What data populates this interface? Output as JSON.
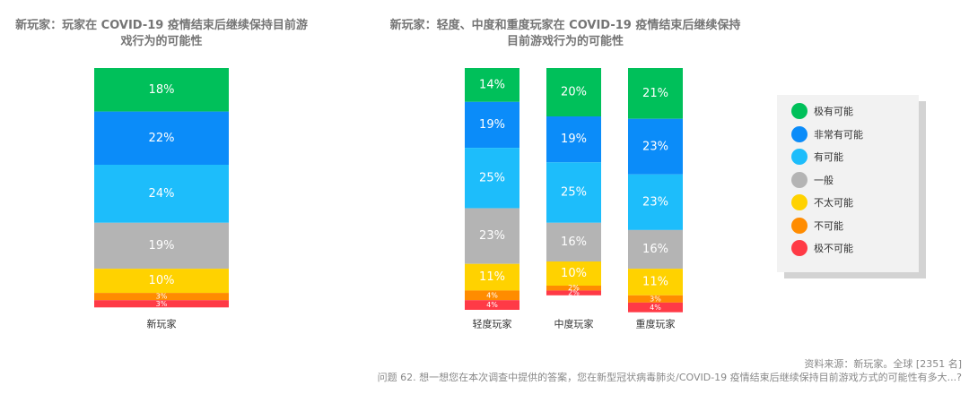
{
  "chart_data": [
    {
      "type": "bar",
      "stacked": true,
      "percent": true,
      "title": "新玩家：玩家在 COVID-19 疫情结束后继续保持目前游戏行为的可能性",
      "title_lines": [
        "新玩家：玩家在 COVID-19 疫情结束后继续保持目前游",
        "戏行为的可能性"
      ],
      "categories": [
        "新玩家"
      ],
      "series": [
        {
          "name": "极有可能",
          "values": [
            18
          ]
        },
        {
          "name": "非常有可能",
          "values": [
            22
          ]
        },
        {
          "name": "有可能",
          "values": [
            24
          ]
        },
        {
          "name": "一般",
          "values": [
            19
          ]
        },
        {
          "name": "不太可能",
          "values": [
            10
          ]
        },
        {
          "name": "不可能",
          "values": [
            3
          ]
        },
        {
          "name": "极不可能",
          "values": [
            3
          ]
        }
      ],
      "data_labels": [
        [
          "18%",
          "22%",
          "24%",
          "19%",
          "10%",
          "3%",
          "3%"
        ]
      ],
      "xlabel": "",
      "ylabel": "",
      "ylim": [
        0,
        100
      ]
    },
    {
      "type": "bar",
      "stacked": true,
      "percent": true,
      "title": "新玩家：轻度、中度和重度玩家在 COVID-19 疫情结束后继续保持目前游戏行为的可能性",
      "title_lines": [
        "新玩家：轻度、中度和重度玩家在 COVID-19 疫情结束后继续保持",
        "目前游戏行为的可能性"
      ],
      "categories": [
        "轻度玩家",
        "中度玩家",
        "重度玩家"
      ],
      "series": [
        {
          "name": "极有可能",
          "values": [
            14,
            20,
            21
          ]
        },
        {
          "name": "非常有可能",
          "values": [
            19,
            19,
            23
          ]
        },
        {
          "name": "有可能",
          "values": [
            25,
            25,
            23
          ]
        },
        {
          "name": "一般",
          "values": [
            23,
            16,
            16
          ]
        },
        {
          "name": "不太可能",
          "values": [
            11,
            10,
            11
          ]
        },
        {
          "name": "不可能",
          "values": [
            4,
            2,
            3
          ]
        },
        {
          "name": "极不可能",
          "values": [
            4,
            2,
            4
          ]
        }
      ],
      "data_labels": [
        [
          "14%",
          "19%",
          "25%",
          "23%",
          "11%",
          "4%",
          "4%"
        ],
        [
          "20%",
          "19%",
          "25%",
          "16%",
          "10%",
          "2%",
          "2%"
        ],
        [
          "21%",
          "23%",
          "23%",
          "16%",
          "11%",
          "3%",
          "4%"
        ]
      ],
      "xlabel": "",
      "ylabel": "",
      "ylim": [
        0,
        100
      ]
    }
  ],
  "legend": {
    "placement": "right",
    "items": [
      {
        "label": "极有可能",
        "color": "#00C05A"
      },
      {
        "label": "非常有可能",
        "color": "#0B8CF9"
      },
      {
        "label": "有可能",
        "color": "#1DBDFB"
      },
      {
        "label": "一般",
        "color": "#B4B4B4"
      },
      {
        "label": "不太可能",
        "color": "#FFD200"
      },
      {
        "label": "不可能",
        "color": "#FF8C00"
      },
      {
        "label": "极不可能",
        "color": "#FF3A46"
      }
    ]
  },
  "footer": {
    "source": "资料来源：新玩家。全球 [2351 名]",
    "question": "问题 62. 想一想您在本次调查中提供的答案，您在新型冠状病毒肺炎/COVID-19 疫情结束后继续保持目前游戏方式的可能性有多大...?"
  }
}
